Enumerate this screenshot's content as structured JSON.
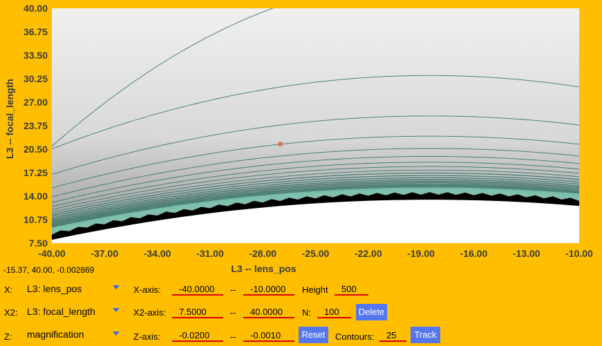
{
  "chart_data": {
    "type": "heatmap",
    "xlabel": "L3 -- lens_pos",
    "ylabel": "L3 -- focal_length",
    "xlim": [
      -40.0,
      -10.0
    ],
    "ylim": [
      7.5,
      40.0
    ],
    "xticks": [
      "-40.00",
      "-37.00",
      "-34.00",
      "-31.00",
      "-28.00",
      "-25.00",
      "-22.00",
      "-19.00",
      "-16.00",
      "-13.00",
      "-10.00"
    ],
    "yticks": [
      "7.50",
      "10.75",
      "14.00",
      "17.25",
      "20.50",
      "23.75",
      "27.00",
      "30.25",
      "33.50",
      "36.75",
      "40.00"
    ],
    "contours": 25,
    "marker": {
      "x": -27.0,
      "y": 21.2
    }
  },
  "readout": "-15.37, 40.00, -0.002869",
  "controls": {
    "x_label": "X:",
    "x_value": "L3: lens_pos",
    "x2_label": "X2:",
    "x2_value": "L3: focal_length",
    "z_label": "Z:",
    "z_value": "magnification",
    "xaxis_label": "X-axis:",
    "xaxis_min": "-40.0000",
    "xaxis_max": "-10.0000",
    "x2axis_label": "X2-axis:",
    "x2axis_min": "7.5000",
    "x2axis_max": "40.0000",
    "zaxis_label": "Z-axis:",
    "zaxis_min": "-0.0200",
    "zaxis_max": "-0.0010",
    "dash": "--",
    "height_label": "Height",
    "height_value": "500",
    "n_label": "N:",
    "n_value": "100",
    "contours_label": "Contours:",
    "contours_value": "25",
    "delete_label": "Delete",
    "reset_label": "Reset",
    "track_label": "Track"
  },
  "colors": {
    "background": "#FFBF00",
    "contour": "#3a7a6e",
    "button": "#5577ee",
    "underline": "#e00000"
  }
}
